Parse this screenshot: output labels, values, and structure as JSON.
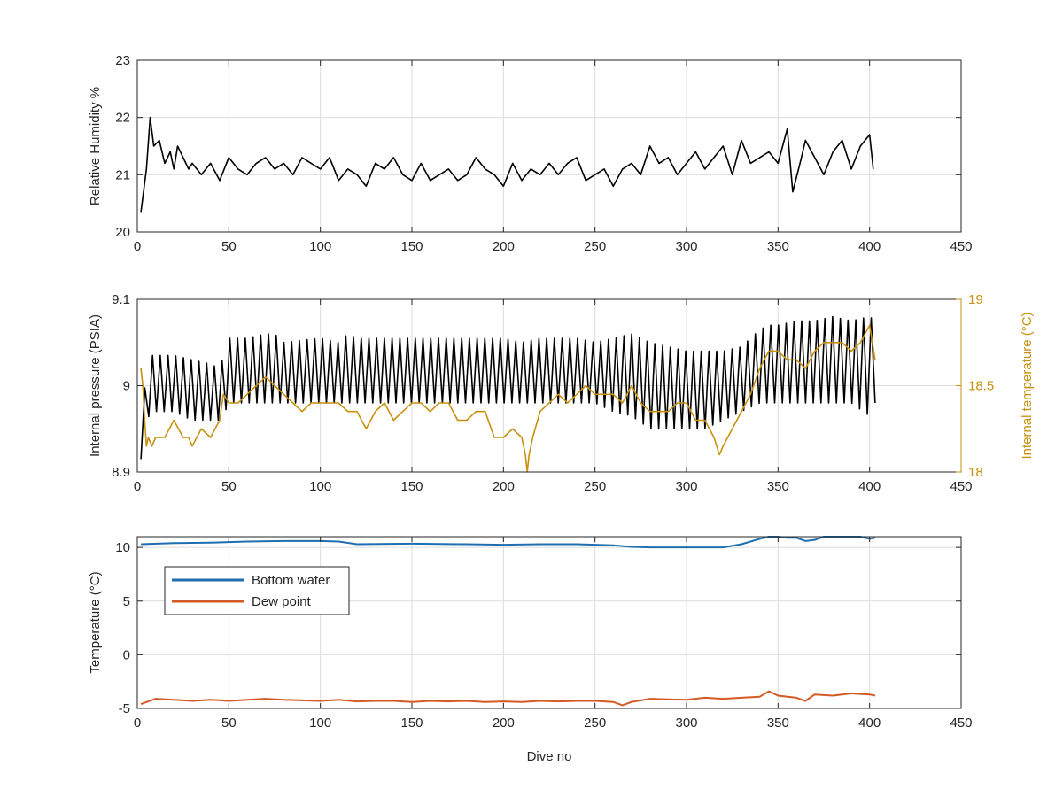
{
  "colors": {
    "axis": "#262626",
    "grid": "#dcdcdc",
    "humidity": "#000000",
    "pressure": "#000000",
    "internal_temp": "#c8900f",
    "bottom_water": "#1f6fb0",
    "dew_point": "#d35a24"
  },
  "chart_data": [
    {
      "type": "line",
      "title": "",
      "xlabel": "",
      "ylabel": "Relative Humidity %",
      "xlim": [
        0,
        450
      ],
      "ylim": [
        20,
        23
      ],
      "xticks": [
        0,
        50,
        100,
        150,
        200,
        250,
        300,
        350,
        400,
        450
      ],
      "yticks": [
        20,
        21,
        22,
        23
      ],
      "grid": true,
      "series": [
        {
          "color": "#000000",
          "x": [
            2,
            5,
            7,
            9,
            12,
            15,
            18,
            20,
            22,
            25,
            28,
            30,
            35,
            40,
            45,
            50,
            55,
            60,
            65,
            70,
            75,
            80,
            85,
            90,
            95,
            100,
            105,
            110,
            115,
            120,
            125,
            130,
            135,
            140,
            145,
            150,
            155,
            160,
            165,
            170,
            175,
            180,
            185,
            190,
            195,
            200,
            205,
            210,
            215,
            220,
            225,
            230,
            235,
            240,
            245,
            250,
            255,
            260,
            265,
            270,
            275,
            280,
            285,
            290,
            295,
            300,
            305,
            310,
            315,
            320,
            325,
            330,
            335,
            340,
            345,
            350,
            355,
            358,
            362,
            365,
            370,
            375,
            380,
            385,
            390,
            395,
            400,
            402
          ],
          "y": [
            20.35,
            21.1,
            22.0,
            21.5,
            21.6,
            21.2,
            21.4,
            21.1,
            21.5,
            21.3,
            21.1,
            21.2,
            21.0,
            21.2,
            20.9,
            21.3,
            21.1,
            21.0,
            21.2,
            21.3,
            21.1,
            21.2,
            21.0,
            21.3,
            21.2,
            21.1,
            21.3,
            20.9,
            21.1,
            21.0,
            20.8,
            21.2,
            21.1,
            21.3,
            21.0,
            20.9,
            21.2,
            20.9,
            21.0,
            21.1,
            20.9,
            21.0,
            21.3,
            21.1,
            21.0,
            20.8,
            21.2,
            20.9,
            21.1,
            21.0,
            21.2,
            21.0,
            21.2,
            21.3,
            20.9,
            21.0,
            21.1,
            20.8,
            21.1,
            21.2,
            21.0,
            21.5,
            21.2,
            21.3,
            21.0,
            21.2,
            21.4,
            21.1,
            21.3,
            21.5,
            21.0,
            21.6,
            21.2,
            21.3,
            21.4,
            21.2,
            21.8,
            20.7,
            21.2,
            21.6,
            21.3,
            21.0,
            21.4,
            21.6,
            21.1,
            21.5,
            21.7,
            21.1
          ]
        }
      ]
    },
    {
      "type": "line",
      "title": "",
      "xlabel": "",
      "ylabel": "Internal pressure (PSIA)",
      "y2label": "Internal temperature (°C)",
      "xlim": [
        0,
        450
      ],
      "ylim": [
        8.9,
        9.1
      ],
      "y2lim": [
        18,
        19
      ],
      "xticks": [
        0,
        50,
        100,
        150,
        200,
        250,
        300,
        350,
        400,
        450
      ],
      "yticks": [
        8.9,
        9,
        9.1
      ],
      "y2ticks": [
        18,
        18.5,
        19
      ],
      "grid": true,
      "series": [
        {
          "axis": "left",
          "color": "#000000",
          "x": [
            2,
            5,
            8,
            12,
            20,
            30,
            40,
            45,
            48,
            50,
            60,
            70,
            75,
            80,
            100,
            110,
            115,
            120,
            150,
            180,
            200,
            210,
            220,
            240,
            250,
            260,
            270,
            280,
            290,
            300,
            310,
            320,
            330,
            340,
            345,
            350,
            360,
            370,
            380,
            390,
            400,
            403
          ],
          "ymin": [
            8.915,
            8.96,
            8.97,
            8.97,
            8.97,
            8.96,
            8.96,
            8.96,
            8.97,
            8.98,
            8.98,
            8.98,
            8.98,
            8.98,
            8.98,
            8.98,
            8.98,
            8.98,
            8.98,
            8.98,
            8.98,
            8.98,
            8.98,
            8.98,
            8.98,
            8.97,
            8.965,
            8.95,
            8.95,
            8.95,
            8.95,
            8.96,
            8.97,
            8.98,
            8.98,
            8.98,
            8.98,
            8.98,
            8.98,
            8.98,
            8.965,
            8.98
          ],
          "ymax": [
            8.92,
            9.03,
            9.035,
            9.035,
            9.035,
            9.03,
            9.025,
            9.02,
            9.04,
            9.055,
            9.055,
            9.06,
            9.06,
            9.05,
            9.055,
            9.05,
            9.06,
            9.055,
            9.055,
            9.055,
            9.055,
            9.05,
            9.055,
            9.055,
            9.05,
            9.055,
            9.06,
            9.05,
            9.045,
            9.04,
            9.04,
            9.04,
            9.045,
            9.065,
            9.07,
            9.07,
            9.075,
            9.075,
            9.08,
            9.075,
            9.08,
            9.075
          ]
        },
        {
          "axis": "right",
          "color": "#c8900f",
          "x": [
            2,
            3,
            4,
            5,
            6,
            8,
            10,
            15,
            20,
            25,
            28,
            30,
            35,
            40,
            45,
            47,
            50,
            55,
            60,
            65,
            70,
            75,
            80,
            85,
            90,
            95,
            100,
            105,
            110,
            115,
            120,
            125,
            130,
            135,
            140,
            145,
            150,
            155,
            160,
            165,
            170,
            175,
            180,
            185,
            190,
            195,
            200,
            205,
            210,
            212,
            213,
            214,
            216,
            220,
            225,
            230,
            235,
            240,
            245,
            250,
            255,
            260,
            265,
            270,
            275,
            280,
            285,
            290,
            295,
            300,
            305,
            310,
            315,
            318,
            320,
            325,
            330,
            335,
            340,
            345,
            350,
            355,
            360,
            365,
            370,
            375,
            380,
            385,
            390,
            395,
            400,
            403
          ],
          "y": [
            18.6,
            18.5,
            18.3,
            18.15,
            18.2,
            18.15,
            18.2,
            18.2,
            18.3,
            18.2,
            18.2,
            18.15,
            18.25,
            18.2,
            18.3,
            18.45,
            18.4,
            18.4,
            18.45,
            18.5,
            18.55,
            18.5,
            18.45,
            18.4,
            18.35,
            18.4,
            18.4,
            18.4,
            18.4,
            18.35,
            18.35,
            18.25,
            18.35,
            18.4,
            18.3,
            18.35,
            18.4,
            18.4,
            18.35,
            18.4,
            18.4,
            18.3,
            18.3,
            18.35,
            18.35,
            18.2,
            18.2,
            18.25,
            18.2,
            18.1,
            18.0,
            18.1,
            18.2,
            18.35,
            18.4,
            18.45,
            18.4,
            18.45,
            18.5,
            18.45,
            18.45,
            18.45,
            18.4,
            18.5,
            18.4,
            18.35,
            18.35,
            18.35,
            18.4,
            18.4,
            18.3,
            18.3,
            18.2,
            18.1,
            18.15,
            18.25,
            18.35,
            18.45,
            18.6,
            18.7,
            18.7,
            18.65,
            18.65,
            18.6,
            18.7,
            18.75,
            18.75,
            18.75,
            18.7,
            18.75,
            18.85,
            18.65
          ]
        }
      ]
    },
    {
      "type": "line",
      "title": "",
      "xlabel": "Dive no",
      "ylabel": "Temperature (°C)",
      "xlim": [
        0,
        450
      ],
      "ylim": [
        -5,
        11
      ],
      "xticks": [
        0,
        50,
        100,
        150,
        200,
        250,
        300,
        350,
        400,
        450
      ],
      "yticks": [
        -5,
        0,
        5,
        10
      ],
      "grid": true,
      "legend": "upper-left",
      "series": [
        {
          "name": "Bottom water",
          "color": "#1f6fb0",
          "x": [
            2,
            20,
            40,
            60,
            80,
            100,
            110,
            120,
            150,
            180,
            200,
            220,
            240,
            260,
            270,
            280,
            300,
            310,
            320,
            330,
            340,
            345,
            350,
            355,
            360,
            365,
            370,
            375,
            380,
            385,
            390,
            395,
            400,
            403
          ],
          "y": [
            10.3,
            10.4,
            10.45,
            10.55,
            10.6,
            10.6,
            10.55,
            10.3,
            10.35,
            10.3,
            10.25,
            10.3,
            10.3,
            10.2,
            10.05,
            10.0,
            10.0,
            10.0,
            10.0,
            10.3,
            10.8,
            11.0,
            11.0,
            10.9,
            10.9,
            10.6,
            10.7,
            11.0,
            11.0,
            11.0,
            11.0,
            11.0,
            10.8,
            10.9
          ]
        },
        {
          "name": "Dew point",
          "color": "#d35a24",
          "x": [
            2,
            10,
            20,
            30,
            40,
            50,
            60,
            70,
            80,
            90,
            100,
            110,
            120,
            130,
            140,
            150,
            160,
            170,
            180,
            190,
            200,
            210,
            220,
            230,
            240,
            250,
            260,
            265,
            270,
            280,
            290,
            300,
            310,
            320,
            330,
            340,
            345,
            350,
            360,
            365,
            370,
            380,
            390,
            400,
            403
          ],
          "y": [
            -4.6,
            -4.1,
            -4.2,
            -4.3,
            -4.2,
            -4.3,
            -4.2,
            -4.1,
            -4.2,
            -4.25,
            -4.3,
            -4.2,
            -4.35,
            -4.3,
            -4.3,
            -4.4,
            -4.3,
            -4.35,
            -4.3,
            -4.4,
            -4.35,
            -4.4,
            -4.3,
            -4.35,
            -4.3,
            -4.3,
            -4.4,
            -4.7,
            -4.4,
            -4.1,
            -4.15,
            -4.2,
            -4.0,
            -4.1,
            -4.0,
            -3.9,
            -3.4,
            -3.8,
            -4.0,
            -4.3,
            -3.7,
            -3.8,
            -3.6,
            -3.7,
            -3.8
          ]
        }
      ]
    }
  ]
}
